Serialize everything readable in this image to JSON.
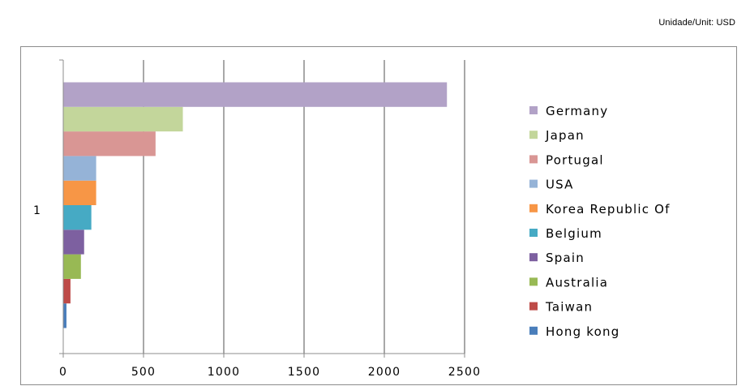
{
  "unit_label": "Unidade/Unit: USD",
  "chart_data": {
    "type": "bar",
    "orientation": "horizontal",
    "category_label": "1",
    "series": [
      {
        "name": "Hong kong",
        "value": 20,
        "color": "#4a7ebb"
      },
      {
        "name": "Taiwan",
        "value": 45,
        "color": "#be4b48"
      },
      {
        "name": "Australia",
        "value": 110,
        "color": "#98b954"
      },
      {
        "name": "Spain",
        "value": 130,
        "color": "#7d60a0"
      },
      {
        "name": "Belgium",
        "value": 175,
        "color": "#46aac4"
      },
      {
        "name": "Korea Republic Of",
        "value": 205,
        "color": "#f79646"
      },
      {
        "name": "USA",
        "value": 205,
        "color": "#95b3d7"
      },
      {
        "name": "Portugal",
        "value": 575,
        "color": "#d99694"
      },
      {
        "name": "Japan",
        "value": 745,
        "color": "#c3d69b"
      },
      {
        "name": "Germany",
        "value": 2390,
        "color": "#b2a2c7"
      }
    ],
    "x_ticks": [
      "0",
      "500",
      "1000",
      "1500",
      "2000",
      "2500"
    ],
    "xlim": [
      0,
      2500
    ],
    "grid": true,
    "legend_position": "right"
  }
}
